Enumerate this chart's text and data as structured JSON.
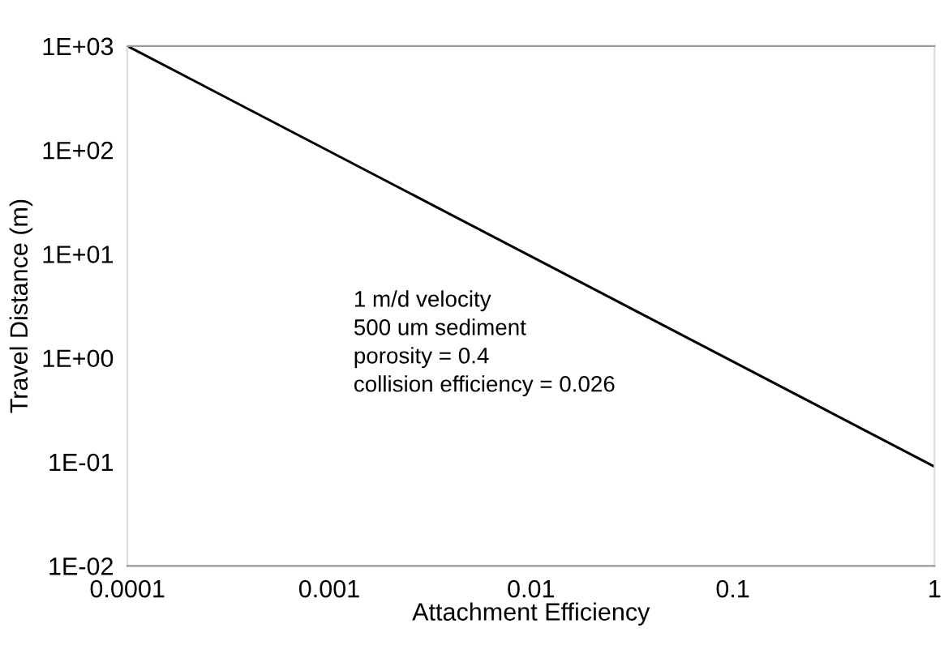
{
  "chart_data": {
    "type": "line",
    "xlabel": "Attachment Efficiency",
    "ylabel": "Travel Distance (m)",
    "x": [
      0.0001,
      1
    ],
    "series": [
      {
        "color": "#000000",
        "values": [
          1000,
          0.09
        ]
      }
    ],
    "log": "xy",
    "xlim": [
      0.0001,
      1
    ],
    "ylim": [
      0.01,
      1000
    ],
    "xticks": [
      0.0001,
      0.001,
      0.01,
      0.1,
      1
    ],
    "yticks": [
      {
        "value": 0.01,
        "label": "1E-02"
      },
      {
        "value": 0.1,
        "label": "1E-01"
      },
      {
        "value": 1,
        "label": "1E+00"
      },
      {
        "value": 10,
        "label": "1E+01"
      },
      {
        "value": 100,
        "label": "1E+02"
      },
      {
        "value": 1000,
        "label": "1E+03"
      }
    ],
    "annotations": [
      "1 m/d velocity\n500 um sediment\nporosity = 0.4\ncollision efficiency = 0.026"
    ],
    "grid": false,
    "marker": "none",
    "line_style": "solid"
  }
}
